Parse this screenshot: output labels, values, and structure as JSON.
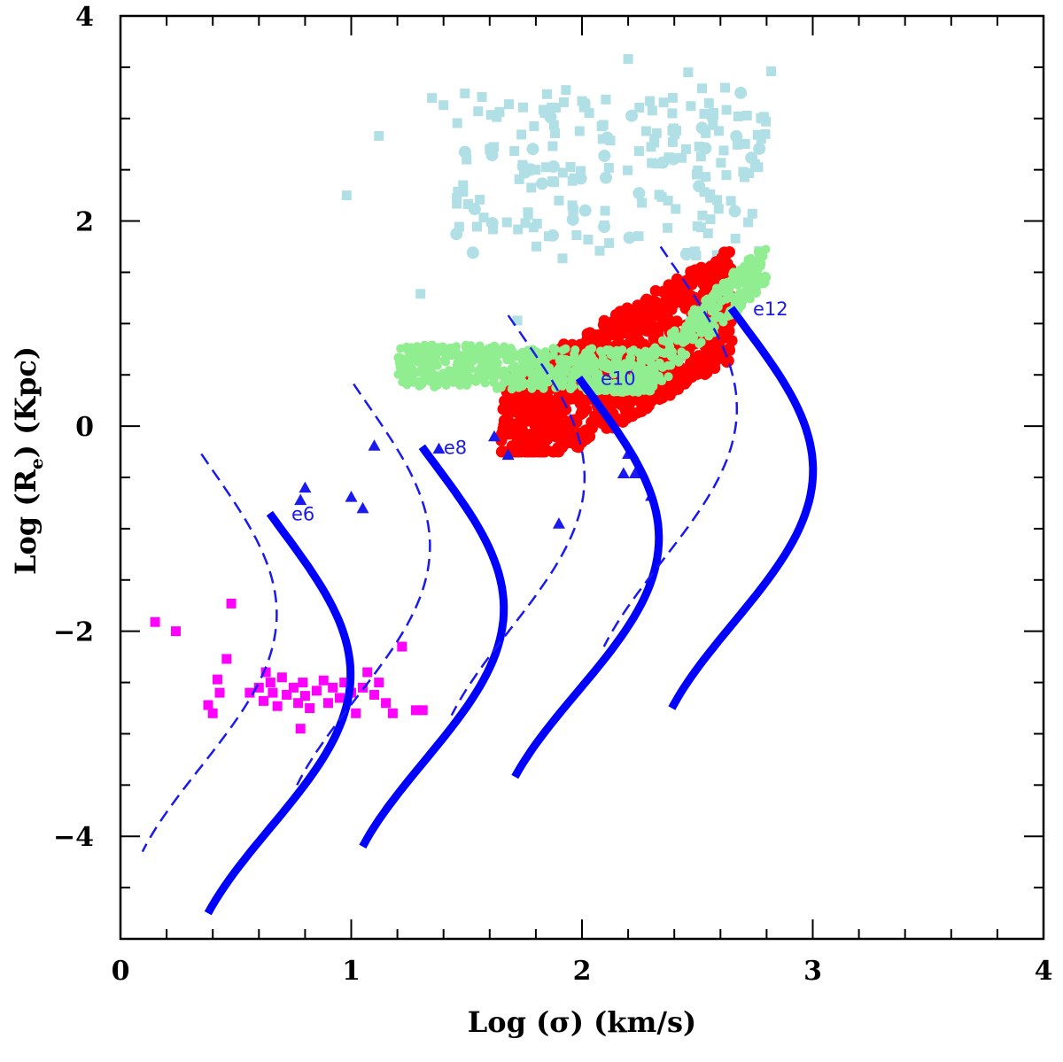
{
  "chart_data": {
    "type": "scatter",
    "xlabel": "Log (σ)  (km/s)",
    "ylabel_main": "Log (R",
    "ylabel_sub": "e",
    "ylabel_tail": ")   (Kpc)",
    "xlim": [
      0,
      4
    ],
    "ylim": [
      -5,
      4
    ],
    "x_major_ticks": [
      0,
      1,
      2,
      3,
      4
    ],
    "y_major_ticks": [
      -4,
      -2,
      0,
      2,
      4
    ],
    "x_tick_labels": [
      "0",
      "1",
      "2",
      "3",
      "4"
    ],
    "y_tick_labels": [
      "−4",
      "−2",
      "0",
      "2",
      "4"
    ],
    "grid": false,
    "colors": {
      "cyan_squares": "#b0dfe6",
      "red_points": "#ff0000",
      "green_points": "#90ee90",
      "magenta_squares": "#ff00ff",
      "blue_markers": "#1a1aee",
      "curves": "#0000ff",
      "dashed_curves": "#1a1aee"
    },
    "solid_curves": [
      {
        "label": "e6",
        "top": [
          0.71,
          -0.85
        ],
        "bottom": [
          0.63,
          -4.75
        ]
      },
      {
        "label": "e8",
        "top": [
          1.37,
          -0.2
        ],
        "bottom": [
          1.3,
          -4.1
        ]
      },
      {
        "label": "e10",
        "top": [
          2.05,
          0.47
        ],
        "bottom": [
          1.96,
          -3.42
        ]
      },
      {
        "label": "e12",
        "top": [
          2.71,
          1.15
        ],
        "bottom": [
          2.64,
          -2.75
        ]
      }
    ],
    "dashed_curves": [
      {
        "top": [
          0.41,
          -0.27
        ],
        "bottom": [
          0.33,
          -4.15
        ]
      },
      {
        "top": [
          1.07,
          0.41
        ],
        "bottom": [
          1.0,
          -3.5
        ]
      },
      {
        "top": [
          1.74,
          1.08
        ],
        "bottom": [
          1.67,
          -2.82
        ]
      },
      {
        "top": [
          2.4,
          1.75
        ],
        "bottom": [
          2.33,
          -2.15
        ]
      }
    ],
    "blue_triangles": [
      [
        0.8,
        -0.6
      ],
      [
        0.78,
        -0.72
      ],
      [
        1.0,
        -0.69
      ],
      [
        1.05,
        -0.8
      ],
      [
        1.1,
        -0.19
      ],
      [
        1.38,
        -0.22
      ],
      [
        1.62,
        -0.1
      ],
      [
        1.68,
        -0.28
      ],
      [
        1.9,
        -0.95
      ],
      [
        2.2,
        -0.27
      ],
      [
        2.18,
        -0.46
      ],
      [
        2.23,
        -0.46
      ],
      [
        2.3,
        -0.68
      ]
    ],
    "magenta_squares": [
      [
        0.15,
        -1.91
      ],
      [
        0.24,
        -2.0
      ],
      [
        0.48,
        -1.73
      ],
      [
        0.46,
        -2.27
      ],
      [
        0.38,
        -2.72
      ],
      [
        0.4,
        -2.8
      ],
      [
        0.43,
        -2.6
      ],
      [
        0.42,
        -2.47
      ],
      [
        0.6,
        -2.55
      ],
      [
        0.62,
        -2.68
      ],
      [
        0.65,
        -2.5
      ],
      [
        0.66,
        -2.6
      ],
      [
        0.68,
        -2.73
      ],
      [
        0.7,
        -2.45
      ],
      [
        0.72,
        -2.62
      ],
      [
        0.75,
        -2.55
      ],
      [
        0.77,
        -2.7
      ],
      [
        0.79,
        -2.5
      ],
      [
        0.8,
        -2.63
      ],
      [
        0.82,
        -2.75
      ],
      [
        0.85,
        -2.58
      ],
      [
        0.88,
        -2.48
      ],
      [
        0.9,
        -2.7
      ],
      [
        0.92,
        -2.55
      ],
      [
        0.95,
        -2.65
      ],
      [
        0.97,
        -2.5
      ],
      [
        1.0,
        -2.6
      ],
      [
        1.02,
        -2.8
      ],
      [
        1.05,
        -2.55
      ],
      [
        1.07,
        -2.4
      ],
      [
        1.1,
        -2.62
      ],
      [
        1.12,
        -2.5
      ],
      [
        1.15,
        -2.7
      ],
      [
        1.18,
        -2.8
      ],
      [
        1.22,
        -2.15
      ],
      [
        1.28,
        -2.77
      ],
      [
        1.31,
        -2.77
      ],
      [
        0.78,
        -2.95
      ],
      [
        0.63,
        -2.4
      ],
      [
        0.56,
        -2.6
      ]
    ],
    "cyan_squares": [
      [
        0.98,
        2.25
      ],
      [
        1.12,
        2.83
      ],
      [
        1.3,
        1.29
      ],
      [
        1.35,
        3.2
      ],
      [
        1.4,
        3.13
      ],
      [
        1.72,
        1.03
      ],
      [
        2.0,
        3.17
      ],
      [
        2.2,
        3.58
      ],
      [
        2.46,
        3.45
      ],
      [
        2.62,
        3.3
      ],
      [
        2.82,
        3.46
      ],
      [
        2.78,
        3.0
      ],
      [
        2.55,
        3.15
      ],
      [
        2.1,
        2.1
      ],
      [
        2.5,
        1.95
      ],
      [
        1.55,
        3.07
      ],
      [
        1.5,
        2.6
      ],
      [
        1.6,
        2.7
      ],
      [
        1.8,
        2.5
      ],
      [
        1.9,
        2.2
      ]
    ],
    "cyan_cloud": {
      "x_range": [
        1.45,
        2.8
      ],
      "y_range": [
        1.6,
        3.3
      ],
      "count": 190
    },
    "red_cloud": {
      "x_range": [
        1.65,
        2.65
      ],
      "y_range": [
        -0.25,
        1.78
      ],
      "count": 950
    },
    "green_cloud": {
      "x_range": [
        1.2,
        2.8
      ],
      "y_range": [
        0.1,
        1.85
      ],
      "count": 800
    },
    "curve_labels": [
      "e6",
      "e8",
      "e10",
      "e12"
    ]
  }
}
